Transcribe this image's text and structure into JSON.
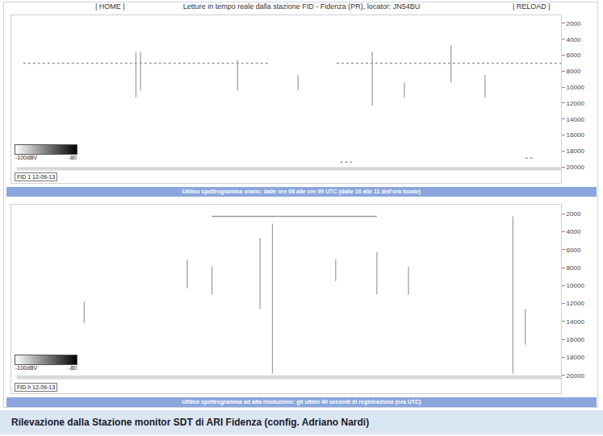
{
  "header": {
    "left_link": "| HOME |",
    "title": "Letture in tempo reale dalla stazione FID - Fidenza (PR), locator: JN54BU",
    "right_link": "| RELOAD |"
  },
  "chart_data": [
    {
      "type": "spectrogram",
      "caption": "Ultimo spettrogramma orario: dalle ore 08 alle ore 09 UTC (dalle 10 alle 11 dell'ora locale)",
      "station_label": "FID 1 12-09-13",
      "color_scale": {
        "min_label": "-100dBV",
        "max_label": "-80"
      },
      "color": "#9a9a9a",
      "tick_labels": "y",
      "xlim": [
        0,
        60
      ],
      "ylim": [
        22000,
        1000
      ],
      "yticks": [
        2000,
        4000,
        6000,
        8000,
        10000,
        12000,
        14000,
        16000,
        18000,
        20000
      ],
      "streaks": {
        "t": [
          13.6,
          14.1,
          24.7,
          31.3,
          39.4,
          42.9,
          48.0,
          51.7
        ],
        "f_low": [
          5600,
          5600,
          6600,
          8500,
          5600,
          9400,
          4700,
          8500
        ],
        "f_high": [
          11300,
          10400,
          10400,
          10400,
          12300,
          11300,
          9400,
          11300
        ]
      },
      "tones": {
        "f": [
          7000,
          7000,
          19400,
          18900
        ],
        "t_start": [
          1.3,
          35.5,
          35.9,
          56.1
        ],
        "t_end": [
          28.0,
          60,
          37.2,
          57.0
        ],
        "line_style": "dotted"
      }
    },
    {
      "type": "spectrogram",
      "caption": "Ultimo spettrogramma ad alta risoluzione: gli ultimi 40 secondi di registrazione (ora UTC)",
      "station_label": "FID h 12-09-13",
      "color_scale": {
        "min_label": "-100dBV",
        "max_label": "-80"
      },
      "color": "#9a9a9a",
      "tick_labels": "y",
      "xlim": [
        0,
        40
      ],
      "ylim": [
        22000,
        1000
      ],
      "yticks": [
        2000,
        4000,
        6000,
        8000,
        10000,
        12000,
        14000,
        16000,
        18000,
        20000
      ],
      "streaks": {
        "t": [
          5.3,
          12.8,
          14.6,
          18.1,
          19.0,
          23.6,
          26.6,
          28.9,
          36.5,
          37.4
        ],
        "f_low": [
          11800,
          7100,
          7900,
          4700,
          3100,
          7100,
          6300,
          7900,
          2300,
          12600
        ],
        "f_high": [
          14200,
          10300,
          11000,
          12600,
          19800,
          9500,
          11000,
          11000,
          19800,
          16600
        ]
      },
      "tones": {
        "f": [
          2300
        ],
        "t_start": [
          14.6
        ],
        "t_end": [
          26.6
        ],
        "line_style": "solid"
      }
    }
  ],
  "caption": "Rilevazione dalla Stazione monitor SDT di ARI Fidenza (config. Adriano Nardi)"
}
